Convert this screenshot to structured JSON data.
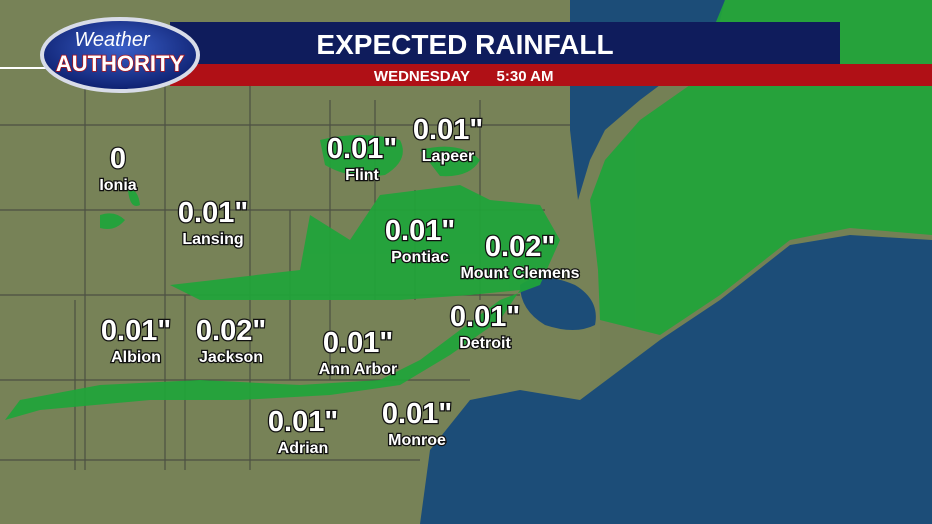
{
  "header": {
    "logo_top": "Weather",
    "logo_bottom": "AUTHORITY",
    "title": "EXPECTED RAINFALL",
    "day": "WEDNESDAY",
    "time": "5:30 AM"
  },
  "cities": [
    {
      "name": "Ionia",
      "amount": "0"
    },
    {
      "name": "Lansing",
      "amount": "0.01\""
    },
    {
      "name": "Flint",
      "amount": "0.01\""
    },
    {
      "name": "Lapeer",
      "amount": "0.01\""
    },
    {
      "name": "Pontiac",
      "amount": "0.01\""
    },
    {
      "name": "Mount Clemens",
      "amount": "0.02\""
    },
    {
      "name": "Albion",
      "amount": "0.01\""
    },
    {
      "name": "Jackson",
      "amount": "0.02\""
    },
    {
      "name": "Ann Arbor",
      "amount": "0.01\""
    },
    {
      "name": "Detroit",
      "amount": "0.01\""
    },
    {
      "name": "Adrian",
      "amount": "0.01\""
    },
    {
      "name": "Monroe",
      "amount": "0.01\""
    }
  ]
}
